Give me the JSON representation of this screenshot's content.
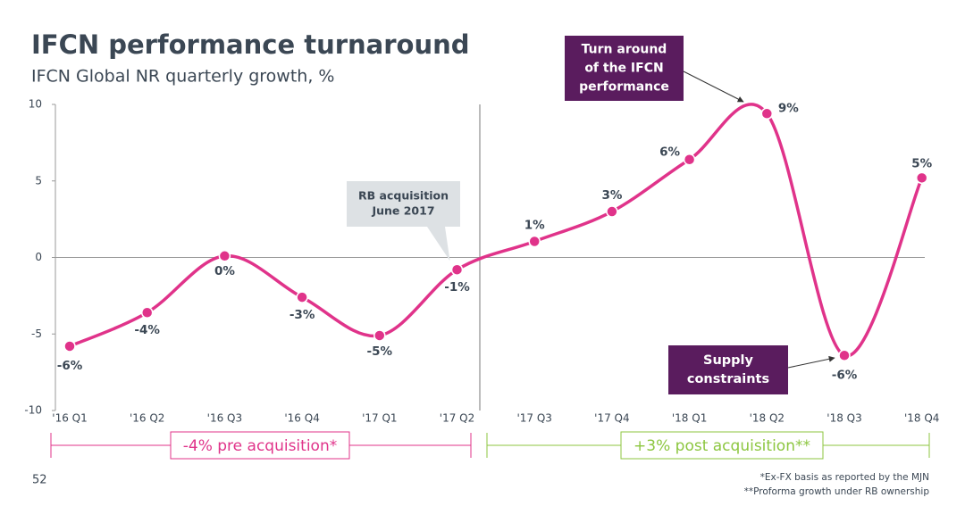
{
  "title": "IFCN performance turnaround",
  "subtitle": "IFCN Global NR quarterly growth, %",
  "page_number": "52",
  "footnotes": [
    "*Ex-FX basis as reported by the MJN",
    "**Proforma growth under RB ownership"
  ],
  "chart_data": {
    "type": "line",
    "categories": [
      "'16 Q1",
      "'16 Q2",
      "'16 Q3",
      "'16 Q4",
      "'17 Q1",
      "'17 Q2",
      "'17 Q3",
      "'17 Q4",
      "'18 Q1",
      "'18 Q2",
      "'18 Q3",
      "'18 Q4"
    ],
    "values": [
      -5.8,
      -3.6,
      0.1,
      -2.6,
      -5.1,
      -0.8,
      1.05,
      3.0,
      6.4,
      9.4,
      -6.4,
      5.2
    ],
    "value_labels": [
      "-6%",
      "-4%",
      "0%",
      "-3%",
      "-5%",
      "-1%",
      "1%",
      "3%",
      "6%",
      "9%",
      "-6%",
      "5%"
    ],
    "color": "#e0338a",
    "ylim": [
      -10,
      10
    ],
    "yticks": [
      -10,
      -5,
      0,
      5,
      10
    ],
    "annotations": [
      {
        "text": [
          "RB acquisition",
          "June 2017"
        ]
      },
      {
        "text": [
          "Turn around",
          "of the IFCN",
          "performance"
        ]
      },
      {
        "text": [
          "Supply",
          "constraints"
        ]
      }
    ],
    "periods": [
      {
        "label": "-4% pre acquisition*",
        "color": "#e0338a"
      },
      {
        "label": "+3% post acquisition**",
        "color": "#8cc63f"
      }
    ]
  }
}
